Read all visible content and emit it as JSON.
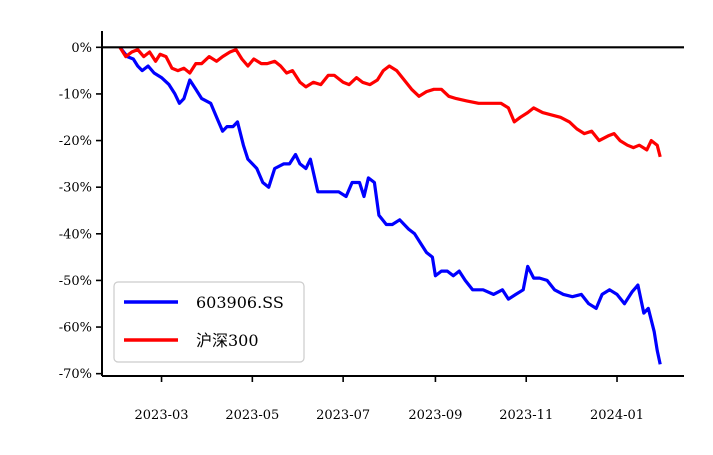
{
  "chart_data": {
    "type": "line",
    "title": "",
    "xlabel": "",
    "ylabel": "",
    "x_range": [
      "2023-01-20",
      "2024-02-15"
    ],
    "ylim": [
      -70.5,
      3.5
    ],
    "y_ticks": [
      0,
      -10,
      -20,
      -30,
      -40,
      -50,
      -60,
      -70
    ],
    "y_tick_labels": [
      "0%",
      "-10%",
      "-20%",
      "-30%",
      "-40%",
      "-50%",
      "-60%",
      "-70%"
    ],
    "x_ticks": [
      "2023-03-01",
      "2023-05-01",
      "2023-07-01",
      "2023-09-01",
      "2023-11-01",
      "2024-01-01"
    ],
    "x_tick_labels": [
      "2023-03",
      "2023-05",
      "2023-07",
      "2023-09",
      "2023-11",
      "2024-01"
    ],
    "zero_line": true,
    "grid": false,
    "legend_position": "lower-left",
    "series": [
      {
        "name": "603906.SS",
        "color": "#0000ff",
        "points": [
          [
            "2023-02-01",
            0
          ],
          [
            "2023-02-06",
            -2
          ],
          [
            "2023-02-10",
            -2.5
          ],
          [
            "2023-02-13",
            -4
          ],
          [
            "2023-02-16",
            -5
          ],
          [
            "2023-02-20",
            -4
          ],
          [
            "2023-02-24",
            -5.5
          ],
          [
            "2023-03-01",
            -6.5
          ],
          [
            "2023-03-06",
            -8
          ],
          [
            "2023-03-10",
            -10
          ],
          [
            "2023-03-13",
            -12
          ],
          [
            "2023-03-16",
            -11
          ],
          [
            "2023-03-20",
            -7
          ],
          [
            "2023-03-24",
            -9
          ],
          [
            "2023-03-28",
            -11
          ],
          [
            "2023-04-03",
            -12
          ],
          [
            "2023-04-07",
            -15
          ],
          [
            "2023-04-11",
            -18
          ],
          [
            "2023-04-14",
            -17
          ],
          [
            "2023-04-18",
            -17
          ],
          [
            "2023-04-21",
            -16
          ],
          [
            "2023-04-25",
            -21
          ],
          [
            "2023-04-28",
            -24
          ],
          [
            "2023-05-04",
            -26
          ],
          [
            "2023-05-08",
            -29
          ],
          [
            "2023-05-12",
            -30
          ],
          [
            "2023-05-16",
            -26
          ],
          [
            "2023-05-22",
            -25
          ],
          [
            "2023-05-26",
            -25
          ],
          [
            "2023-05-30",
            -23
          ],
          [
            "2023-06-02",
            -25
          ],
          [
            "2023-06-06",
            -26
          ],
          [
            "2023-06-09",
            -24
          ],
          [
            "2023-06-14",
            -31
          ],
          [
            "2023-06-19",
            -31
          ],
          [
            "2023-06-25",
            -31
          ],
          [
            "2023-06-28",
            -31
          ],
          [
            "2023-07-03",
            -32
          ],
          [
            "2023-07-07",
            -29
          ],
          [
            "2023-07-12",
            -29
          ],
          [
            "2023-07-15",
            -32
          ],
          [
            "2023-07-18",
            -28
          ],
          [
            "2023-07-22",
            -29
          ],
          [
            "2023-07-25",
            -36
          ],
          [
            "2023-07-30",
            -38
          ],
          [
            "2023-08-03",
            -38
          ],
          [
            "2023-08-08",
            -37
          ],
          [
            "2023-08-14",
            -39
          ],
          [
            "2023-08-18",
            -40
          ],
          [
            "2023-08-22",
            -42
          ],
          [
            "2023-08-26",
            -44
          ],
          [
            "2023-08-30",
            -45
          ],
          [
            "2023-09-01",
            -49
          ],
          [
            "2023-09-05",
            -48
          ],
          [
            "2023-09-09",
            -48
          ],
          [
            "2023-09-13",
            -49
          ],
          [
            "2023-09-17",
            -48
          ],
          [
            "2023-09-21",
            -50
          ],
          [
            "2023-09-26",
            -52
          ],
          [
            "2023-10-03",
            -52
          ],
          [
            "2023-10-10",
            -53
          ],
          [
            "2023-10-16",
            -52
          ],
          [
            "2023-10-20",
            -54
          ],
          [
            "2023-10-25",
            -53
          ],
          [
            "2023-10-30",
            -52
          ],
          [
            "2023-11-02",
            -47
          ],
          [
            "2023-11-06",
            -49.5
          ],
          [
            "2023-11-10",
            -49.5
          ],
          [
            "2023-11-15",
            -50
          ],
          [
            "2023-11-20",
            -52
          ],
          [
            "2023-11-26",
            -53
          ],
          [
            "2023-12-02",
            -53.5
          ],
          [
            "2023-12-08",
            -53
          ],
          [
            "2023-12-13",
            -55
          ],
          [
            "2023-12-18",
            -56
          ],
          [
            "2023-12-22",
            -53
          ],
          [
            "2023-12-27",
            -52
          ],
          [
            "2024-01-01",
            -53
          ],
          [
            "2024-01-06",
            -55
          ],
          [
            "2024-01-11",
            -52.5
          ],
          [
            "2024-01-15",
            -51
          ],
          [
            "2024-01-19",
            -57
          ],
          [
            "2024-01-22",
            -56
          ],
          [
            "2024-01-26",
            -61
          ],
          [
            "2024-01-28",
            -65
          ],
          [
            "2024-01-30",
            -68
          ]
        ]
      },
      {
        "name": "沪深300",
        "color": "#ff0000",
        "points": [
          [
            "2023-02-01",
            0
          ],
          [
            "2023-02-05",
            -2
          ],
          [
            "2023-02-09",
            -1
          ],
          [
            "2023-02-13",
            -0.5
          ],
          [
            "2023-02-17",
            -2
          ],
          [
            "2023-02-21",
            -1
          ],
          [
            "2023-02-25",
            -3
          ],
          [
            "2023-02-28",
            -1.5
          ],
          [
            "2023-03-04",
            -2
          ],
          [
            "2023-03-08",
            -4.5
          ],
          [
            "2023-03-12",
            -5
          ],
          [
            "2023-03-16",
            -4.5
          ],
          [
            "2023-03-20",
            -5.5
          ],
          [
            "2023-03-24",
            -3.5
          ],
          [
            "2023-03-28",
            -3.5
          ],
          [
            "2023-04-02",
            -2
          ],
          [
            "2023-04-07",
            -3
          ],
          [
            "2023-04-11",
            -2
          ],
          [
            "2023-04-16",
            -1
          ],
          [
            "2023-04-20",
            -0.5
          ],
          [
            "2023-04-24",
            -2.5
          ],
          [
            "2023-04-28",
            -4
          ],
          [
            "2023-05-02",
            -2.5
          ],
          [
            "2023-05-07",
            -3.5
          ],
          [
            "2023-05-11",
            -3.5
          ],
          [
            "2023-05-16",
            -3
          ],
          [
            "2023-05-20",
            -4
          ],
          [
            "2023-05-24",
            -5.5
          ],
          [
            "2023-05-28",
            -5
          ],
          [
            "2023-06-02",
            -7.5
          ],
          [
            "2023-06-06",
            -8.5
          ],
          [
            "2023-06-11",
            -7.5
          ],
          [
            "2023-06-16",
            -8
          ],
          [
            "2023-06-21",
            -6
          ],
          [
            "2023-06-25",
            -6
          ],
          [
            "2023-07-01",
            -7.5
          ],
          [
            "2023-07-05",
            -8
          ],
          [
            "2023-07-10",
            -6.5
          ],
          [
            "2023-07-14",
            -7.5
          ],
          [
            "2023-07-19",
            -8
          ],
          [
            "2023-07-24",
            -7
          ],
          [
            "2023-07-28",
            -5
          ],
          [
            "2023-08-01",
            -4
          ],
          [
            "2023-08-06",
            -5
          ],
          [
            "2023-08-11",
            -7
          ],
          [
            "2023-08-16",
            -9
          ],
          [
            "2023-08-21",
            -10.5
          ],
          [
            "2023-08-26",
            -9.5
          ],
          [
            "2023-08-31",
            -9
          ],
          [
            "2023-09-05",
            -9
          ],
          [
            "2023-09-10",
            -10.5
          ],
          [
            "2023-09-15",
            -11
          ],
          [
            "2023-09-22",
            -11.5
          ],
          [
            "2023-09-30",
            -12
          ],
          [
            "2023-10-08",
            -12
          ],
          [
            "2023-10-15",
            -12
          ],
          [
            "2023-10-20",
            -13
          ],
          [
            "2023-10-24",
            -16
          ],
          [
            "2023-10-28",
            -15
          ],
          [
            "2023-11-02",
            -14
          ],
          [
            "2023-11-06",
            -13
          ],
          [
            "2023-11-12",
            -14
          ],
          [
            "2023-11-18",
            -14.5
          ],
          [
            "2023-11-24",
            -15
          ],
          [
            "2023-11-30",
            -16
          ],
          [
            "2023-12-05",
            -17.5
          ],
          [
            "2023-12-10",
            -18.5
          ],
          [
            "2023-12-15",
            -18
          ],
          [
            "2023-12-20",
            -20
          ],
          [
            "2023-12-26",
            -19
          ],
          [
            "2023-12-30",
            -18.5
          ],
          [
            "2024-01-03",
            -20
          ],
          [
            "2024-01-08",
            -21
          ],
          [
            "2024-01-12",
            -21.5
          ],
          [
            "2024-01-16",
            -21
          ],
          [
            "2024-01-21",
            -22
          ],
          [
            "2024-01-24",
            -20
          ],
          [
            "2024-01-28",
            -21
          ],
          [
            "2024-01-30",
            -23.5
          ]
        ]
      }
    ]
  }
}
